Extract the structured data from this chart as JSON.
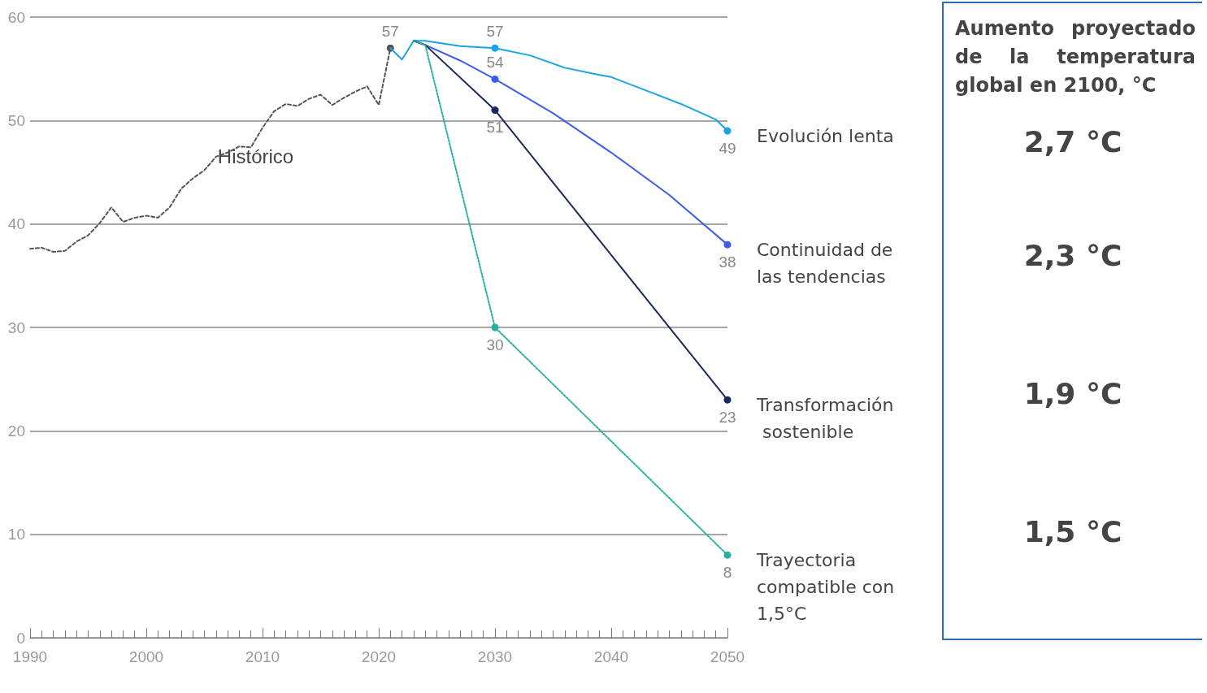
{
  "chart_data": {
    "type": "line",
    "xlim": [
      1990,
      2050
    ],
    "xticks": [
      1990,
      2000,
      2010,
      2020,
      2030,
      2040,
      2050
    ],
    "ylim": [
      0,
      60
    ],
    "yticks": [
      0,
      10,
      20,
      30,
      40,
      50,
      60
    ],
    "grid": "y",
    "annotations": [
      "Aumento proyectado de la temperatura global en 2100, °C",
      "2,7 °C",
      "2,3 °C",
      "1,9 °C",
      "1,5 °C"
    ],
    "series": [
      {
        "name": "Histórico",
        "color": "#555555",
        "line_style": "dashed",
        "x": [
          1990,
          1991,
          1992,
          1993,
          1994,
          1995,
          1996,
          1997,
          1998,
          1999,
          2000,
          2001,
          2002,
          2003,
          2004,
          2005,
          2006,
          2007,
          2008,
          2009,
          2010,
          2011,
          2012,
          2013,
          2014,
          2015,
          2016,
          2017,
          2018,
          2019,
          2020,
          2021
        ],
        "values": [
          37.6,
          37.7,
          37.3,
          37.4,
          38.3,
          38.9,
          40.1,
          41.6,
          40.2,
          40.6,
          40.8,
          40.6,
          41.6,
          43.4,
          44.4,
          45.2,
          46.5,
          46.9,
          47.5,
          47.4,
          49.3,
          50.9,
          51.6,
          51.4,
          52.1,
          52.5,
          51.5,
          52.2,
          52.8,
          53.3,
          51.5,
          57
        ],
        "value_labels": [
          null,
          null,
          null,
          null,
          null,
          null,
          null,
          null,
          null,
          null,
          null,
          null,
          null,
          null,
          null,
          null,
          null,
          null,
          null,
          null,
          null,
          null,
          null,
          null,
          null,
          null,
          null,
          null,
          null,
          null,
          null,
          "57"
        ]
      },
      {
        "name": "Evolución lenta",
        "color": "#1aa3e8",
        "line_style": "solid",
        "x": [
          2021,
          2022,
          2023,
          2024,
          2027,
          2030,
          2033,
          2036,
          2039,
          2040,
          2043,
          2046,
          2049,
          2050
        ],
        "values": [
          57,
          55.9,
          57.7,
          57.7,
          57.2,
          57,
          56.3,
          55.1,
          54.4,
          54.2,
          52.9,
          51.6,
          50.1,
          49
        ],
        "value_labels": [
          null,
          null,
          null,
          null,
          null,
          "57",
          null,
          null,
          null,
          null,
          null,
          null,
          null,
          "49"
        ]
      },
      {
        "name": "Continuidad de las tendencias",
        "color": "#3d5cf0",
        "line_style": "solid",
        "x": [
          2023,
          2024,
          2027,
          2030,
          2035,
          2040,
          2045,
          2050
        ],
        "values": [
          57.7,
          57.3,
          55.8,
          54,
          50.7,
          46.9,
          42.8,
          38
        ],
        "value_labels": [
          null,
          null,
          null,
          "54",
          null,
          null,
          null,
          "38"
        ]
      },
      {
        "name": "Transformación sostenible",
        "color": "#1b2a5e",
        "line_style": "solid",
        "x": [
          2023,
          2024,
          2030,
          2040,
          2050
        ],
        "values": [
          57.7,
          57.3,
          51,
          37,
          23
        ],
        "value_labels": [
          null,
          null,
          "51",
          null,
          "23"
        ]
      },
      {
        "name": "Trayectoria compatible con 1,5°C",
        "color": "#26b0a0",
        "line_style": "dotted",
        "x": [
          2023,
          2024,
          2030,
          2050
        ],
        "values": [
          57.7,
          57.3,
          30,
          8
        ],
        "value_labels": [
          null,
          null,
          "30",
          "8"
        ]
      }
    ]
  }
}
